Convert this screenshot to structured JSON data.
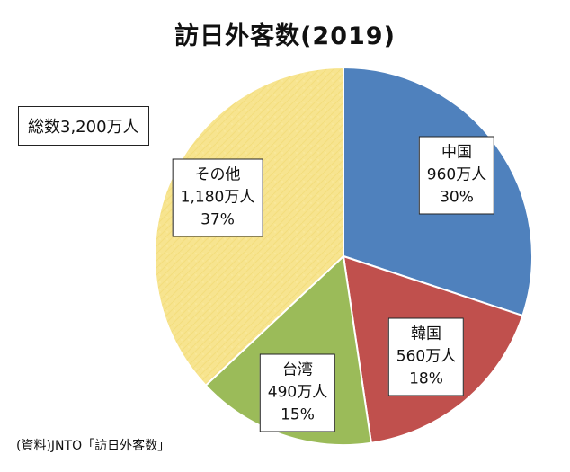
{
  "chart_data": {
    "type": "pie",
    "title": "訪日外客数(2019)",
    "total_label": "総数3,200万人",
    "source_note": "(資料)JNTO「訪日外客数」",
    "slices": [
      {
        "name": "中国",
        "value_label": "960万人",
        "percent_label": "30%",
        "value": 960,
        "percent": 30,
        "color": "#4f81bd"
      },
      {
        "name": "韓国",
        "value_label": "560万人",
        "percent_label": "18%",
        "value": 560,
        "percent": 18,
        "color": "#c0504d"
      },
      {
        "name": "台湾",
        "value_label": "490万人",
        "percent_label": "15%",
        "value": 490,
        "percent": 15,
        "color": "#9bbb59"
      },
      {
        "name": "その他",
        "value_label": "1,180万人",
        "percent_label": "37%",
        "value": 1180,
        "percent": 37,
        "color": "#f7e48f"
      }
    ]
  }
}
